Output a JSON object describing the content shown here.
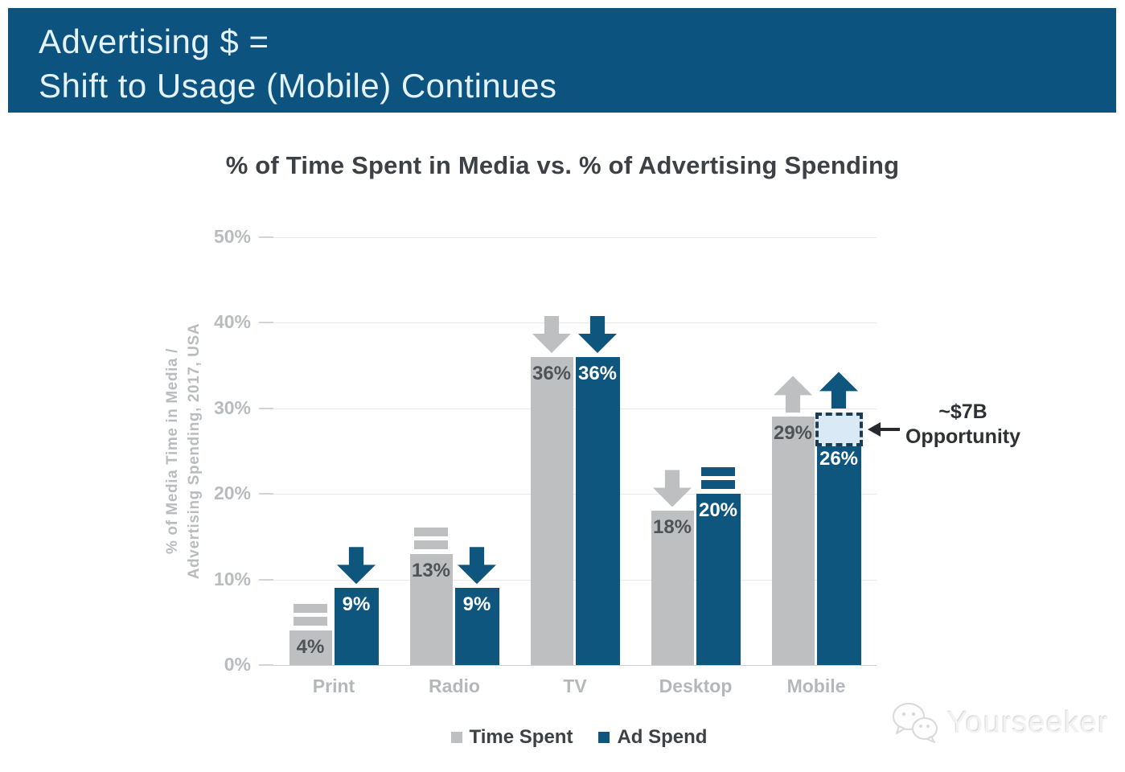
{
  "header": {
    "line1": "Advertising $ =",
    "line2": "Shift to Usage (Mobile) Continues",
    "background_color": "#0d5380"
  },
  "chart_data": {
    "type": "bar",
    "title": "% of Time Spent in Media vs. % of Advertising Spending",
    "ylabel_line1": "% of Media Time in Media /",
    "ylabel_line2": "Advertising Spending, 2017, USA",
    "categories": [
      "Print",
      "Radio",
      "TV",
      "Desktop",
      "Mobile"
    ],
    "series": [
      {
        "name": "Time Spent",
        "color": "#bdbfc1",
        "label_color": "#4f5357",
        "values": [
          4,
          13,
          36,
          18,
          29
        ],
        "value_labels": [
          "4%",
          "13%",
          "36%",
          "18%",
          "29%"
        ],
        "trend_markers": [
          "equal",
          "equal",
          "down",
          "down",
          "up"
        ]
      },
      {
        "name": "Ad Spend",
        "color": "#0f567e",
        "label_color": "#ffffff",
        "values": [
          9,
          9,
          36,
          20,
          26
        ],
        "value_labels": [
          "9%",
          "9%",
          "36%",
          "20%",
          "26%"
        ],
        "trend_markers": [
          "down",
          "down",
          "down",
          "equal",
          "up"
        ]
      }
    ],
    "yticks": [
      "0%",
      "10%",
      "20%",
      "30%",
      "40%",
      "50%"
    ],
    "ylim": [
      0,
      50
    ],
    "grid": true,
    "legend_position": "bottom",
    "annotation": {
      "line1": "~$7B",
      "line2": "Opportunity",
      "target_category": "Mobile",
      "target_series": "Ad Spend",
      "box_top_value": 29,
      "box_bottom_value": 26,
      "box_fill": "#d9eaf6",
      "box_border": "#1c3c55"
    }
  },
  "legend": {
    "items": [
      {
        "label": "Time Spent",
        "color": "#bdbfc1"
      },
      {
        "label": "Ad Spend",
        "color": "#0f567e"
      }
    ]
  },
  "watermark": {
    "text": "Yourseeker"
  }
}
